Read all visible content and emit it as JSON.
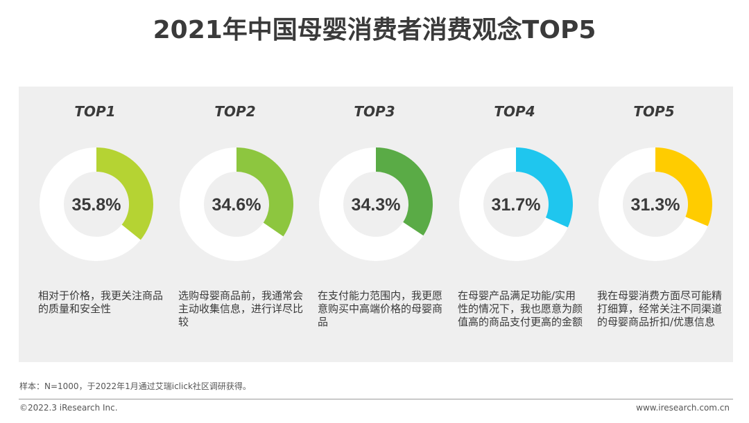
{
  "page": {
    "title": "2021年中国母婴消费者消费观念TOP5",
    "note": "样本：N=1000，于2022年1月通过艾瑞iclick社区调研获得。",
    "copyright": "©2022.3 iResearch Inc.",
    "website": "www.iresearch.com.cn"
  },
  "chart_data": {
    "type": "pie",
    "title": "2021年中国母婴消费者消费观念TOP5",
    "items": [
      {
        "rank": "TOP1",
        "value": 35.8,
        "label": "35.8%",
        "color": "#b5d333",
        "description": "相对于价格，我更关注商品的质量和安全性"
      },
      {
        "rank": "TOP2",
        "value": 34.6,
        "label": "34.6%",
        "color": "#8dc63f",
        "description": "选购母婴商品前，我通常会主动收集信息，进行详尽比较"
      },
      {
        "rank": "TOP3",
        "value": 34.3,
        "label": "34.3%",
        "color": "#5aab46",
        "description": "在支付能力范围内，我更愿意购买中高端价格的母婴商品"
      },
      {
        "rank": "TOP4",
        "value": 31.7,
        "label": "31.7%",
        "color": "#1fc6ee",
        "description": "在母婴产品满足功能/实用性的情况下，我也愿意为颜值高的商品支付更高的金额"
      },
      {
        "rank": "TOP5",
        "value": 31.3,
        "label": "31.3%",
        "color": "#ffcc00",
        "description": "我在母婴消费方面尽可能精打细算，经常关注不同渠道的母婴商品折扣/优惠信息"
      }
    ],
    "ring_color": "#ffffff",
    "max": 100
  }
}
